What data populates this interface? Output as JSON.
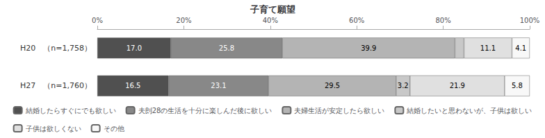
{
  "chart_data": {
    "type": "bar",
    "orientation": "horizontal",
    "stacked": true,
    "title": "子育て願望",
    "categories": [
      "H20　（n=1,758）",
      "H27　（n=1,760）"
    ],
    "series": [
      {
        "name": "結婚したらすぐにでも欲しい",
        "color": "#505050",
        "values": [
          17.0,
          16.5
        ],
        "value_labels": [
          "17.0",
          "16.5"
        ]
      },
      {
        "name": "夫剆28の生活を十分に楽しんだ後に欲しい",
        "color": "#888888",
        "values": [
          25.8,
          23.1
        ],
        "value_labels": [
          "25.8",
          "23.1"
        ]
      },
      {
        "name": "夫婦生活が安定したら欲しい",
        "color": "#b4b4b4",
        "values": [
          39.9,
          29.5
        ],
        "value_labels": [
          "39.9",
          "29.5"
        ]
      },
      {
        "name": "結婚したいと思わないが、子供は欲しい",
        "color": "#c8c8c8",
        "values": [
          2.1,
          3.2
        ],
        "value_labels": [
          null,
          "3.2"
        ]
      },
      {
        "name": "子供は欲しくない",
        "color": "#e0e0e0",
        "values": [
          11.1,
          21.9
        ],
        "value_labels": [
          "11.1",
          "21.9"
        ]
      },
      {
        "name": "その他",
        "color": "#f8f8f8",
        "values": [
          4.1,
          5.8
        ],
        "value_labels": [
          "4.1",
          "5.8"
        ]
      }
    ],
    "xlim": [
      0,
      100
    ],
    "xticks": [
      {
        "value": 0,
        "label": "0%"
      },
      {
        "value": 20,
        "label": "20%"
      },
      {
        "value": 40,
        "label": "40%"
      },
      {
        "value": 60,
        "label": "60%"
      },
      {
        "value": 80,
        "label": "80%"
      },
      {
        "value": 100,
        "label": "100%"
      }
    ],
    "data_labels": true,
    "grid": false,
    "legend": "bottom"
  }
}
